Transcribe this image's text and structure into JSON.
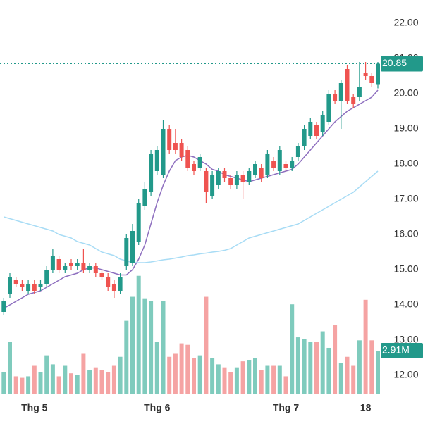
{
  "chart_data": {
    "type": "candlestick",
    "categories": [
      null,
      null,
      null,
      null,
      null,
      "Thg 5",
      null,
      null,
      null,
      null,
      null,
      null,
      null,
      null,
      null,
      null,
      null,
      null,
      null,
      null,
      null,
      null,
      null,
      null,
      null,
      "Thg 6",
      null,
      null,
      null,
      null,
      null,
      null,
      null,
      null,
      null,
      null,
      null,
      null,
      null,
      null,
      null,
      null,
      null,
      null,
      null,
      null,
      "Thg 7",
      null,
      null,
      null,
      null,
      null,
      null,
      null,
      null,
      null,
      null,
      null,
      null,
      "18",
      null,
      null
    ],
    "open": [
      13.8,
      14.3,
      14.7,
      14.6,
      14.4,
      14.6,
      14.5,
      14.6,
      15.0,
      15.3,
      15.0,
      15.2,
      15.1,
      15.2,
      15.0,
      15.1,
      14.9,
      14.8,
      14.6,
      14.4,
      15.1,
      15.2,
      15.8,
      16.8,
      17.2,
      17.8,
      17.7,
      19.0,
      18.6,
      18.6,
      18.4,
      18.0,
      17.9,
      17.8,
      17.1,
      17.4,
      17.8,
      17.6,
      17.4,
      17.7,
      17.5,
      17.7,
      17.9,
      17.7,
      18.1,
      17.8,
      18.0,
      17.9,
      18.2,
      18.5,
      18.8,
      19.1,
      18.9,
      19.2,
      20.0,
      19.8,
      20.7,
      19.9,
      19.9,
      20.6,
      20.5,
      20.25
    ],
    "high": [
      14.2,
      14.9,
      14.8,
      14.7,
      14.7,
      14.7,
      14.7,
      15.1,
      15.6,
      15.4,
      15.2,
      15.3,
      15.3,
      15.6,
      15.2,
      15.2,
      15.0,
      14.9,
      14.7,
      14.9,
      16.0,
      16.3,
      17.0,
      17.5,
      18.4,
      18.5,
      19.25,
      19.1,
      19.0,
      18.7,
      18.5,
      18.1,
      18.3,
      17.9,
      17.8,
      17.9,
      17.9,
      17.7,
      17.8,
      17.8,
      17.9,
      18.1,
      18.0,
      18.4,
      18.2,
      18.5,
      18.1,
      18.2,
      18.6,
      19.1,
      19.3,
      19.2,
      19.5,
      20.1,
      20.1,
      20.4,
      20.8,
      20.0,
      20.9,
      20.9,
      20.6,
      20.9
    ],
    "low": [
      13.7,
      14.2,
      14.5,
      14.4,
      14.3,
      14.3,
      14.4,
      14.5,
      14.9,
      14.9,
      14.9,
      15.0,
      15.0,
      14.9,
      14.9,
      14.8,
      14.7,
      14.4,
      14.2,
      14.3,
      15.0,
      15.1,
      15.7,
      16.7,
      17.1,
      17.7,
      17.6,
      18.3,
      18.3,
      18.1,
      17.8,
      17.7,
      17.8,
      16.9,
      17.0,
      17.3,
      17.5,
      17.3,
      17.3,
      17.0,
      17.4,
      17.6,
      17.5,
      17.6,
      17.8,
      17.7,
      17.8,
      17.8,
      18.1,
      18.4,
      18.7,
      18.7,
      18.8,
      19.1,
      19.7,
      19.0,
      19.7,
      19.6,
      19.8,
      20.4,
      20.2,
      20.15
    ],
    "close": [
      14.1,
      14.8,
      14.6,
      14.5,
      14.6,
      14.4,
      14.6,
      15.0,
      15.4,
      15.0,
      15.1,
      15.1,
      15.2,
      15.0,
      15.1,
      14.9,
      14.8,
      14.5,
      14.4,
      14.8,
      15.9,
      16.1,
      16.9,
      17.3,
      18.3,
      18.4,
      19.0,
      18.4,
      18.4,
      18.2,
      17.9,
      17.8,
      18.2,
      17.2,
      17.7,
      17.8,
      17.6,
      17.4,
      17.7,
      17.5,
      17.8,
      18.0,
      17.6,
      18.3,
      17.9,
      18.4,
      17.9,
      18.1,
      18.5,
      19.0,
      19.2,
      18.8,
      19.4,
      20.0,
      19.8,
      20.3,
      19.8,
      19.7,
      20.2,
      20.5,
      20.3,
      20.85
    ],
    "up_color": "#22998a",
    "down_color": "#ef5350",
    "volume": {
      "values": [
        1.5,
        3.5,
        1.2,
        1.1,
        1.2,
        1.9,
        1.5,
        2.6,
        2.0,
        1.2,
        1.9,
        1.4,
        1.3,
        2.7,
        1.6,
        1.8,
        1.6,
        1.5,
        1.9,
        2.5,
        4.9,
        6.5,
        7.9,
        6.4,
        6.2,
        3.5,
        6.2,
        2.5,
        2.7,
        3.4,
        3.3,
        2.4,
        2.6,
        6.5,
        2.4,
        2.0,
        1.8,
        1.5,
        1.8,
        2.2,
        2.3,
        2.4,
        1.6,
        1.9,
        1.9,
        1.9,
        1.2,
        6.0,
        3.8,
        3.7,
        3.5,
        3.5,
        4.2,
        3.1,
        4.6,
        2.1,
        2.5,
        1.9,
        3.6,
        6.3,
        3.6,
        2.91
      ],
      "value_labels": [
        null,
        null,
        null,
        null,
        null,
        null,
        null,
        null,
        null,
        null,
        null,
        null,
        null,
        null,
        null,
        null,
        null,
        null,
        null,
        null,
        null,
        null,
        null,
        null,
        null,
        null,
        null,
        null,
        null,
        null,
        null,
        null,
        null,
        null,
        null,
        null,
        null,
        null,
        null,
        null,
        null,
        null,
        null,
        null,
        null,
        null,
        null,
        null,
        null,
        null,
        null,
        null,
        null,
        null,
        null,
        null,
        null,
        null,
        null,
        null,
        null,
        "2.91M"
      ],
      "ylim": [
        0,
        10
      ],
      "up_color": "#7fcbbd",
      "down_color": "#f5a3a3"
    },
    "ma": [
      {
        "color": "#8e6fbf",
        "values": [
          13.9,
          14.0,
          14.1,
          14.2,
          14.3,
          14.35,
          14.4,
          14.5,
          14.6,
          14.7,
          14.8,
          14.85,
          14.9,
          15.0,
          15.05,
          15.05,
          15.0,
          14.95,
          14.9,
          14.85,
          14.85,
          15.0,
          15.3,
          15.7,
          16.3,
          16.9,
          17.4,
          17.8,
          18.1,
          18.2,
          18.25,
          18.2,
          18.1,
          18.0,
          17.85,
          17.8,
          17.7,
          17.65,
          17.6,
          17.55,
          17.5,
          17.55,
          17.6,
          17.65,
          17.7,
          17.75,
          17.8,
          17.85,
          18.0,
          18.2,
          18.4,
          18.6,
          18.8,
          19.0,
          19.2,
          19.35,
          19.5,
          19.6,
          19.7,
          19.8,
          19.9,
          20.1
        ]
      },
      {
        "color": "#a8dcf5",
        "values": [
          16.5,
          16.45,
          16.4,
          16.35,
          16.3,
          16.25,
          16.2,
          16.15,
          16.1,
          16.0,
          15.95,
          15.9,
          15.8,
          15.75,
          15.7,
          15.6,
          15.5,
          15.45,
          15.4,
          15.3,
          15.25,
          15.2,
          15.2,
          15.2,
          15.22,
          15.25,
          15.28,
          15.3,
          15.33,
          15.36,
          15.4,
          15.42,
          15.45,
          15.47,
          15.5,
          15.52,
          15.55,
          15.6,
          15.7,
          15.8,
          15.9,
          15.95,
          16.0,
          16.05,
          16.1,
          16.15,
          16.2,
          16.25,
          16.3,
          16.4,
          16.5,
          16.6,
          16.7,
          16.8,
          16.9,
          17.0,
          17.1,
          17.2,
          17.35,
          17.5,
          17.65,
          17.8
        ]
      }
    ],
    "ylim": [
      11.36,
      22.66
    ],
    "yticks": [
      {
        "value": 12,
        "label": "12.00"
      },
      {
        "value": 13,
        "label": "13.00"
      },
      {
        "value": 14,
        "label": "14.00"
      },
      {
        "value": 15,
        "label": "15.00"
      },
      {
        "value": 16,
        "label": "16.00"
      },
      {
        "value": 17,
        "label": "17.00"
      },
      {
        "value": 18,
        "label": "18.00"
      },
      {
        "value": 19,
        "label": "19.00"
      },
      {
        "value": 20,
        "label": "20.00"
      },
      {
        "value": 21,
        "label": "21.00"
      },
      {
        "value": 22,
        "label": "22.00"
      }
    ],
    "grid": false
  }
}
